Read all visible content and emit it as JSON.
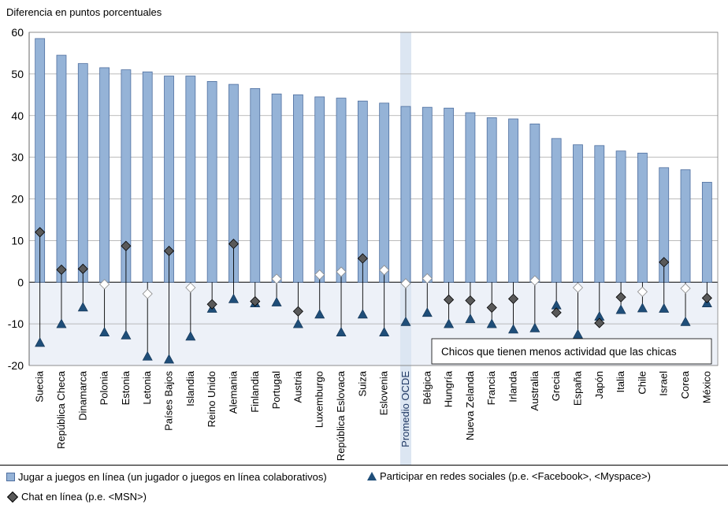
{
  "chart_data": {
    "type": "bar",
    "ylabel": "Diferencia en puntos porcentuales",
    "ylim": [
      -20,
      60
    ],
    "yticks": [
      -20,
      -10,
      0,
      10,
      20,
      30,
      40,
      50,
      60
    ],
    "annotation": "Chicos que tienen menos actividad que las chicas",
    "highlight_category": "Promedio OCDE",
    "categories": [
      "Suecia",
      "República Checa",
      "Dinamarca",
      "Polonia",
      "Estonia",
      "Letonia",
      "Países Bajos",
      "Islandia",
      "Reino Unido",
      "Alemania",
      "Finlandia",
      "Portugal",
      "Austria",
      "Luxemburgo",
      "República Eslovaca",
      "Suiza",
      "Eslovenia",
      "Promedio OCDE",
      "Bélgica",
      "Hungría",
      "Nueva Zelanda",
      "Francia",
      "Irlanda",
      "Australia",
      "Grecia",
      "España",
      "Japón",
      "Italia",
      "Chile",
      "Israel",
      "Corea",
      "México"
    ],
    "series": [
      {
        "name": "Jugar a juegos en línea (un jugador o juegos en línea colaborativos)",
        "kind": "bar",
        "color": "#95b3d7",
        "values": [
          58.5,
          54.5,
          52.5,
          51.5,
          51.0,
          50.5,
          49.5,
          49.5,
          48.2,
          47.5,
          46.5,
          45.2,
          45.0,
          44.5,
          44.2,
          43.5,
          43.0,
          42.2,
          42.0,
          41.8,
          40.7,
          39.5,
          39.2,
          38.0,
          34.5,
          33.0,
          32.8,
          31.5,
          31.0,
          27.5,
          27.0,
          24.0
        ]
      },
      {
        "name": "Participar en redes sociales (p.e. <Facebook>, <Myspace>)",
        "kind": "triangle",
        "color": "#1f4e79",
        "values": [
          -14.5,
          -10.0,
          -6.0,
          -12.0,
          -12.7,
          -17.8,
          -18.5,
          -13.0,
          -6.3,
          -4.0,
          -5.0,
          -4.8,
          -10.0,
          -7.7,
          -12.0,
          -7.7,
          -12.0,
          -9.5,
          -7.3,
          -10.0,
          -8.8,
          -10.0,
          -11.3,
          -11.0,
          -5.5,
          -12.5,
          -8.2,
          -6.6,
          -6.2,
          -6.3,
          -9.5,
          -5.0
        ]
      },
      {
        "name": "Chat en línea (p.e. <MSN>)",
        "kind": "diamond",
        "color": "#595959",
        "values": [
          12.0,
          3.0,
          3.2,
          -0.5,
          8.7,
          -2.8,
          7.5,
          -1.3,
          -5.3,
          9.2,
          -4.6,
          0.8,
          -7.0,
          1.8,
          2.5,
          5.7,
          2.9,
          -0.3,
          0.9,
          -4.2,
          -4.4,
          -6.1,
          -4.0,
          0.4,
          -7.3,
          -1.3,
          -9.8,
          -3.6,
          -2.3,
          4.8,
          -1.5,
          -3.8
        ],
        "filled": [
          true,
          true,
          true,
          false,
          true,
          false,
          true,
          false,
          true,
          true,
          true,
          false,
          true,
          false,
          false,
          true,
          false,
          false,
          false,
          true,
          true,
          true,
          true,
          false,
          true,
          false,
          true,
          true,
          false,
          true,
          false,
          true
        ]
      }
    ]
  },
  "legend": {
    "bar_label": "Jugar a juegos en línea (un jugador o juegos en línea colaborativos)",
    "triangle_label": "Participar en redes sociales (p.e. <Facebook>, <Myspace>)",
    "diamond_label": "Chat en línea (p.e. <MSN>)"
  }
}
